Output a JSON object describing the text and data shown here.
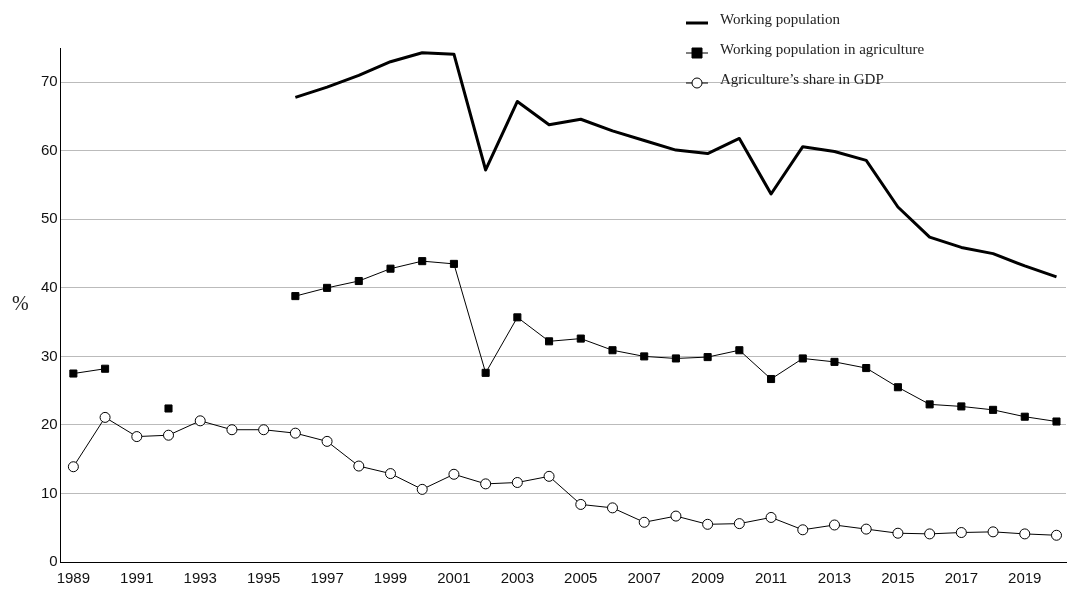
{
  "chart_data": {
    "type": "line",
    "ylabel": "%",
    "x": [
      1989,
      1990,
      1991,
      1992,
      1993,
      1994,
      1995,
      1996,
      1997,
      1998,
      1999,
      2000,
      2001,
      2002,
      2003,
      2004,
      2005,
      2006,
      2007,
      2008,
      2009,
      2010,
      2011,
      2012,
      2013,
      2014,
      2015,
      2016,
      2017,
      2018,
      2019,
      2020
    ],
    "series": [
      {
        "name": "Working population",
        "color": "#000000",
        "marker": "none",
        "values": [
          null,
          null,
          null,
          null,
          null,
          null,
          null,
          67.8,
          69.3,
          71.0,
          73.0,
          74.3,
          74.1,
          57.2,
          67.2,
          63.8,
          64.6,
          62.9,
          61.5,
          60.1,
          59.6,
          61.8,
          53.7,
          60.6,
          59.9,
          58.6,
          51.8,
          47.4,
          45.9,
          45.0,
          43.2,
          41.6
        ]
      },
      {
        "name": "Working population in agriculture",
        "color": "#000000",
        "marker": "square",
        "values": [
          27.5,
          28.2,
          null,
          22.4,
          null,
          null,
          null,
          38.8,
          40.0,
          41.0,
          42.8,
          43.9,
          43.5,
          27.6,
          35.7,
          32.2,
          32.6,
          30.9,
          30.0,
          29.7,
          29.9,
          30.9,
          26.7,
          29.7,
          29.2,
          28.3,
          25.5,
          23.0,
          22.7,
          22.2,
          21.2,
          20.5
        ]
      },
      {
        "name": "Agriculture’s share in GDP",
        "color": "#000000",
        "marker": "circle",
        "values": [
          13.9,
          21.1,
          18.3,
          18.5,
          20.6,
          19.3,
          19.3,
          18.8,
          17.6,
          14.0,
          12.9,
          10.6,
          12.8,
          11.4,
          11.6,
          12.5,
          8.4,
          7.9,
          5.8,
          6.7,
          5.5,
          5.6,
          6.5,
          4.7,
          5.4,
          4.8,
          4.2,
          4.1,
          4.3,
          4.4,
          4.1,
          3.9
        ]
      }
    ],
    "xlim": [
      1988.6,
      2020.3
    ],
    "xticks": [
      1989,
      1991,
      1993,
      1995,
      1997,
      1999,
      2001,
      2003,
      2005,
      2007,
      2009,
      2011,
      2013,
      2015,
      2017,
      2019
    ],
    "ylim": [
      0,
      75
    ],
    "yticks": [
      0,
      10,
      20,
      30,
      40,
      50,
      60,
      70
    ],
    "grid": "y",
    "legend": "top right"
  }
}
